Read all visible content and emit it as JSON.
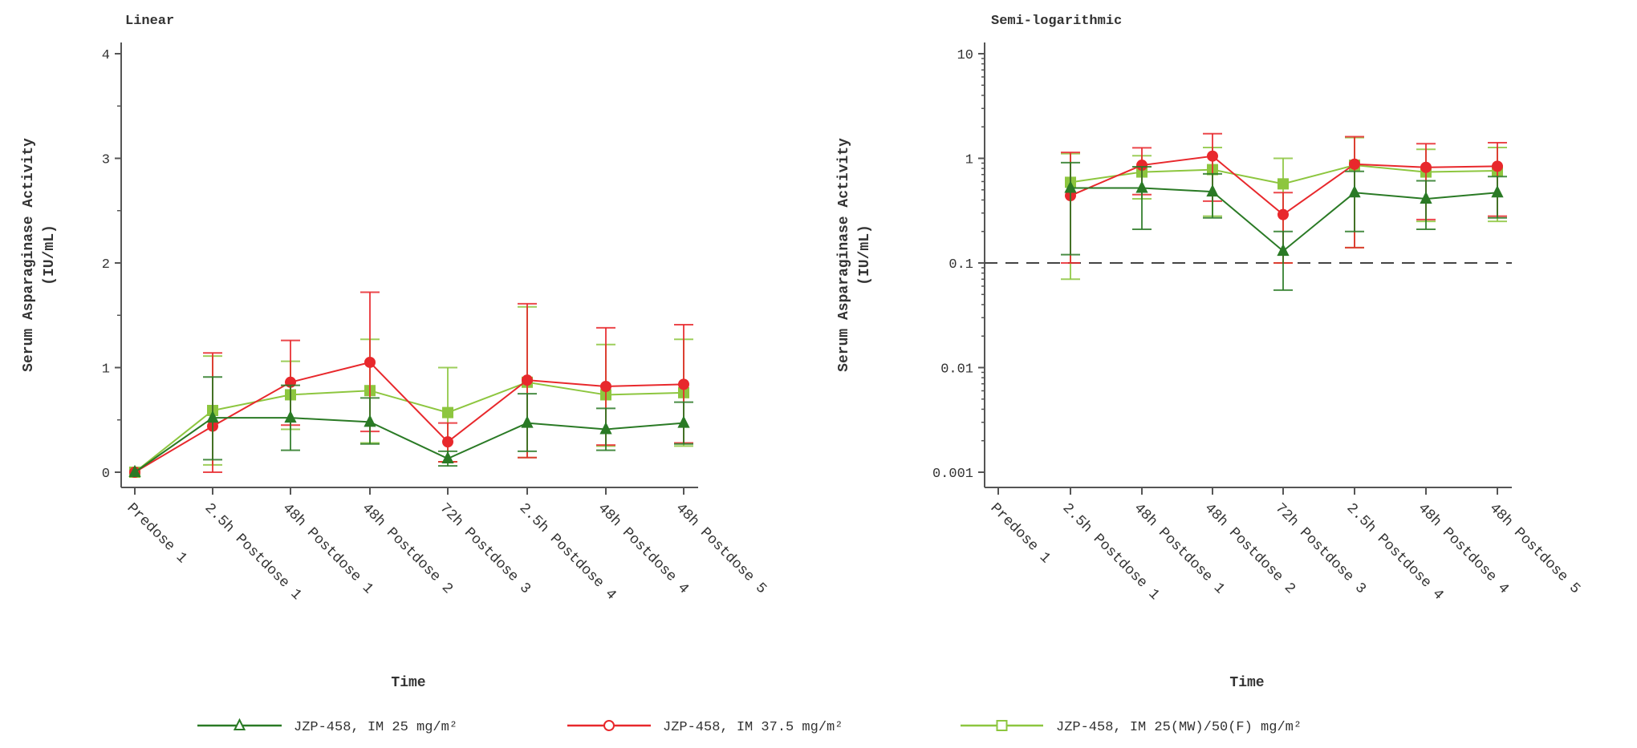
{
  "colors": {
    "series1": "#2a7a25",
    "series2": "#e8282c",
    "series3": "#8dc63f",
    "axis": "#555555"
  },
  "legend": [
    {
      "label": "JZP-458, IM 25 mg/m²",
      "marker": "triangle"
    },
    {
      "label": "JZP-458, IM 37.5 mg/m²",
      "marker": "circle"
    },
    {
      "label": "JZP-458, IM 25(MW)/50(F) mg/m²",
      "marker": "square"
    }
  ],
  "chart_data": [
    {
      "type": "line",
      "title": "Linear",
      "xlabel": "Time",
      "ylabel": [
        "Serum Asparaginase Activity",
        "(IU/mL)"
      ],
      "yscale": "linear",
      "ylim": [
        0,
        4
      ],
      "yticks": [
        "0",
        "1",
        "2",
        "3",
        "4"
      ],
      "categories": [
        "Predose 1",
        "2.5h Postdose 1",
        "48h Postdose 1",
        "48h Postdose 2",
        "72h Postdose 3",
        "2.5h Postdose 4",
        "48h Postdose 4",
        "48h Postdose 5"
      ],
      "series": [
        {
          "name": "JZP-458, IM 25 mg/m²",
          "values": [
            0,
            0.52,
            0.52,
            0.48,
            0.13,
            0.47,
            0.41,
            0.47
          ],
          "lower": [
            0,
            0.12,
            0.21,
            0.27,
            0.06,
            0.2,
            0.21,
            0.27
          ],
          "upper": [
            0,
            0.91,
            0.83,
            0.71,
            0.2,
            0.75,
            0.61,
            0.67
          ]
        },
        {
          "name": "JZP-458, IM 37.5 mg/m²",
          "values": [
            0,
            0.44,
            0.86,
            1.05,
            0.29,
            0.88,
            0.82,
            0.84
          ],
          "lower": [
            0,
            0.0,
            0.45,
            0.39,
            0.1,
            0.14,
            0.26,
            0.28
          ],
          "upper": [
            0,
            1.14,
            1.26,
            1.72,
            0.47,
            1.61,
            1.38,
            1.41
          ]
        },
        {
          "name": "JZP-458, IM 25(MW)/50(F) mg/m²",
          "values": [
            0,
            0.59,
            0.74,
            0.78,
            0.57,
            0.86,
            0.74,
            0.76
          ],
          "lower": [
            0,
            0.07,
            0.41,
            0.28,
            0.1,
            0.14,
            0.25,
            0.25
          ],
          "upper": [
            0,
            1.11,
            1.06,
            1.27,
            1.0,
            1.58,
            1.22,
            1.27
          ]
        }
      ]
    },
    {
      "type": "line",
      "title": "Semi-logarithmic",
      "xlabel": "Time",
      "ylabel": [
        "Serum Asparaginase Activity",
        "(IU/mL)"
      ],
      "yscale": "log",
      "ylim": [
        0.001,
        10
      ],
      "yticks": [
        "0.001",
        "0.01",
        "0.1",
        "1",
        "10"
      ],
      "reference_line": {
        "y": 0.1,
        "style": "dashed"
      },
      "categories": [
        "Predose 1",
        "2.5h Postdose 1",
        "48h Postdose 1",
        "48h Postdose 2",
        "72h Postdose 3",
        "2.5h Postdose 4",
        "48h Postdose 4",
        "48h Postdose 5"
      ],
      "series": [
        {
          "name": "JZP-458, IM 25 mg/m²",
          "values": [
            null,
            0.52,
            0.52,
            0.48,
            0.13,
            0.47,
            0.41,
            0.47
          ],
          "lower": [
            null,
            0.12,
            0.21,
            0.27,
            0.055,
            0.2,
            0.21,
            0.27
          ],
          "upper": [
            null,
            0.91,
            0.83,
            0.71,
            0.2,
            0.75,
            0.61,
            0.67
          ]
        },
        {
          "name": "JZP-458, IM 37.5 mg/m²",
          "values": [
            null,
            0.44,
            0.86,
            1.05,
            0.29,
            0.88,
            0.82,
            0.84
          ],
          "lower": [
            null,
            0.1,
            0.45,
            0.39,
            0.1,
            0.14,
            0.26,
            0.28
          ],
          "upper": [
            null,
            1.14,
            1.26,
            1.72,
            0.47,
            1.61,
            1.38,
            1.41
          ]
        },
        {
          "name": "JZP-458, IM 25(MW)/50(F) mg/m²",
          "values": [
            null,
            0.59,
            0.74,
            0.78,
            0.57,
            0.86,
            0.74,
            0.76
          ],
          "lower": [
            null,
            0.07,
            0.41,
            0.28,
            0.1,
            0.14,
            0.25,
            0.25
          ],
          "upper": [
            null,
            1.11,
            1.06,
            1.27,
            1.0,
            1.58,
            1.22,
            1.27
          ]
        }
      ]
    }
  ]
}
